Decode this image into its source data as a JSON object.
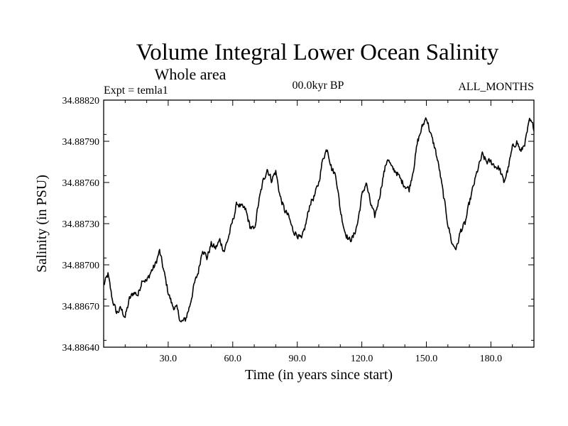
{
  "chart_data": {
    "type": "line",
    "title": "Volume Integral Lower Ocean Salinity",
    "subtitle": "Whole area",
    "annotation_left": "Expt = temla1",
    "annotation_center": "00.0kyr BP",
    "annotation_right": "ALL_MONTHS",
    "xlabel": "Time (in years since start)",
    "ylabel": "Salinity (in PSU)",
    "xlim": [
      0,
      200
    ],
    "ylim": [
      34.8864,
      34.8882
    ],
    "x_ticks": [
      30,
      60,
      90,
      120,
      150,
      180
    ],
    "x_tick_labels": [
      "30.0",
      "60.0",
      "90.0",
      "120.0",
      "150.0",
      "180.0"
    ],
    "x_minor_step": 10,
    "y_ticks": [
      34.8864,
      34.8867,
      34.887,
      34.8873,
      34.8876,
      34.8879,
      34.8882
    ],
    "y_tick_labels": [
      "34.88640",
      "34.88670",
      "34.88700",
      "34.88730",
      "34.88760",
      "34.88790",
      "34.88820"
    ],
    "y_minor_step": 5e-05,
    "grid": false,
    "series": [
      {
        "name": "Salinity",
        "color": "#000000",
        "x": [
          0,
          2,
          4,
          6,
          8,
          10,
          12,
          14,
          16,
          18,
          20,
          22,
          24,
          26,
          28,
          30,
          32,
          34,
          36,
          38,
          40,
          42,
          44,
          46,
          48,
          50,
          52,
          54,
          56,
          58,
          60,
          62,
          64,
          66,
          68,
          70,
          72,
          74,
          76,
          78,
          80,
          82,
          84,
          86,
          88,
          90,
          92,
          94,
          96,
          98,
          100,
          102,
          104,
          106,
          108,
          110,
          112,
          114,
          116,
          118,
          120,
          122,
          124,
          126,
          128,
          130,
          132,
          134,
          136,
          138,
          140,
          142,
          144,
          146,
          148,
          150,
          152,
          154,
          156,
          158,
          160,
          162,
          164,
          166,
          168,
          170,
          172,
          174,
          176,
          178,
          180,
          182,
          184,
          186,
          188,
          190,
          192,
          194,
          196,
          198,
          200
        ],
        "values": [
          34.88685,
          34.88693,
          34.88675,
          34.88665,
          34.88668,
          34.88662,
          34.88675,
          34.8868,
          34.88678,
          34.8869,
          34.88688,
          34.88695,
          34.887,
          34.8871,
          34.88695,
          34.8868,
          34.8867,
          34.88668,
          34.88658,
          34.8866,
          34.8867,
          34.88685,
          34.88695,
          34.88712,
          34.88705,
          34.88715,
          34.88712,
          34.88718,
          34.8871,
          34.8872,
          34.88732,
          34.88745,
          34.88742,
          34.8874,
          34.88728,
          34.88725,
          34.88745,
          34.8876,
          34.8877,
          34.88762,
          34.88768,
          34.8875,
          34.8874,
          34.88735,
          34.88725,
          34.88722,
          34.88718,
          34.8873,
          34.88745,
          34.8875,
          34.8876,
          34.88778,
          34.88785,
          34.8877,
          34.88765,
          34.8874,
          34.88725,
          34.88718,
          34.8872,
          34.8873,
          34.8875,
          34.8876,
          34.88745,
          34.88735,
          34.88748,
          34.88765,
          34.88778,
          34.8877,
          34.88768,
          34.88762,
          34.88758,
          34.88755,
          34.8877,
          34.8879,
          34.888,
          34.88808,
          34.88795,
          34.88785,
          34.8877,
          34.8875,
          34.8873,
          34.88715,
          34.88712,
          34.88725,
          34.8873,
          34.88745,
          34.88758,
          34.8877,
          34.8878,
          34.88775,
          34.88775,
          34.88772,
          34.8877,
          34.8876,
          34.8877,
          34.88785,
          34.8879,
          34.88782,
          34.8879,
          34.88805,
          34.888
        ]
      }
    ]
  }
}
